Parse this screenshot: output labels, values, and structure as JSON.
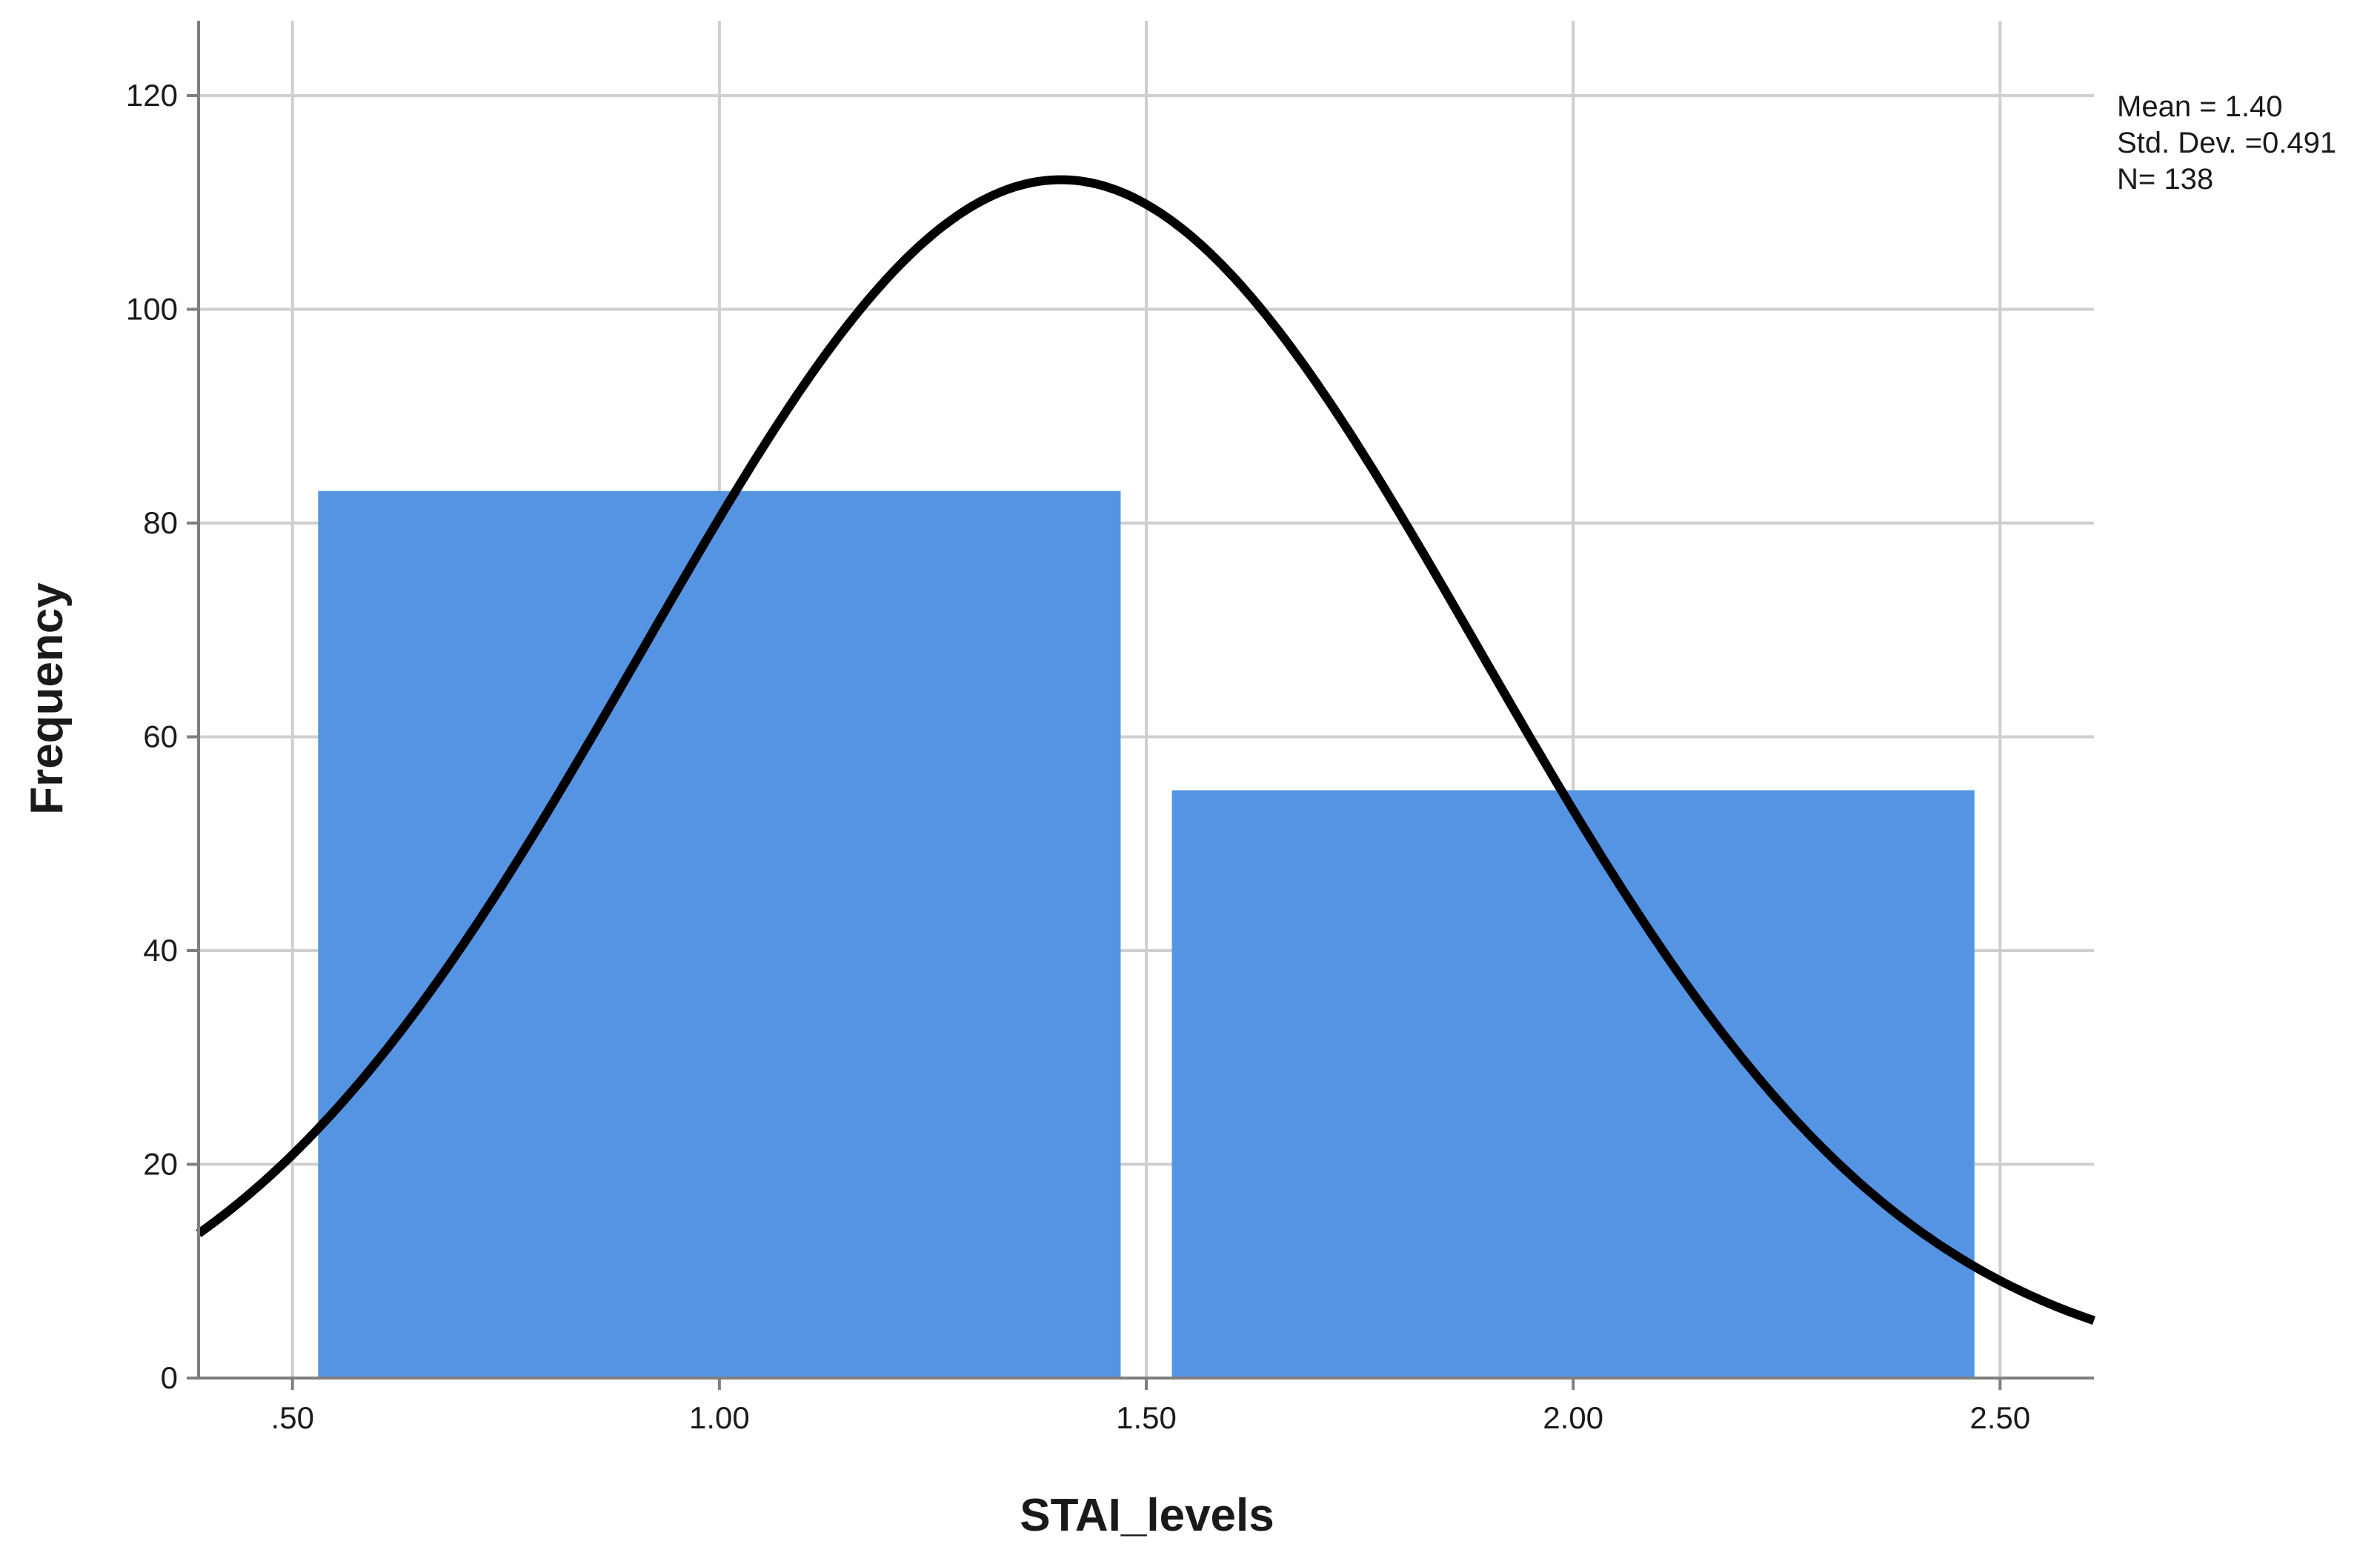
{
  "chart_data": {
    "type": "bar",
    "title": "",
    "xlabel": "STAI_levels",
    "ylabel": "Frequency",
    "bins": [
      {
        "x_start": 0.5,
        "x_end": 1.5,
        "value": 83
      },
      {
        "x_start": 1.5,
        "x_end": 2.5,
        "value": 55
      }
    ],
    "xlim": [
      0.39,
      2.61
    ],
    "ylim": [
      0,
      127
    ],
    "x_ticks": [
      {
        "value": 0.5,
        "label": ".50"
      },
      {
        "value": 1.0,
        "label": "1.00"
      },
      {
        "value": 1.5,
        "label": "1.50"
      },
      {
        "value": 2.0,
        "label": "2.00"
      },
      {
        "value": 2.5,
        "label": "2.50"
      }
    ],
    "y_ticks": [
      {
        "value": 0,
        "label": "0"
      },
      {
        "value": 20,
        "label": "20"
      },
      {
        "value": 40,
        "label": "40"
      },
      {
        "value": 60,
        "label": "60"
      },
      {
        "value": 80,
        "label": "80"
      },
      {
        "value": 100,
        "label": "100"
      },
      {
        "value": 120,
        "label": "120"
      }
    ],
    "grid": true,
    "normal_curve": {
      "mean": 1.4,
      "std_dev": 0.491,
      "n": 138,
      "bin_width": 1.0
    },
    "stats_legend": {
      "placement": "top-right",
      "lines": [
        "Mean = 1.40",
        "Std. Dev. =0.491",
        "N= 138"
      ]
    },
    "colors": {
      "bar": "#5594e3",
      "curve": "#000000",
      "grid": "#cfcfcf",
      "axis": "#7f7f7f"
    }
  }
}
